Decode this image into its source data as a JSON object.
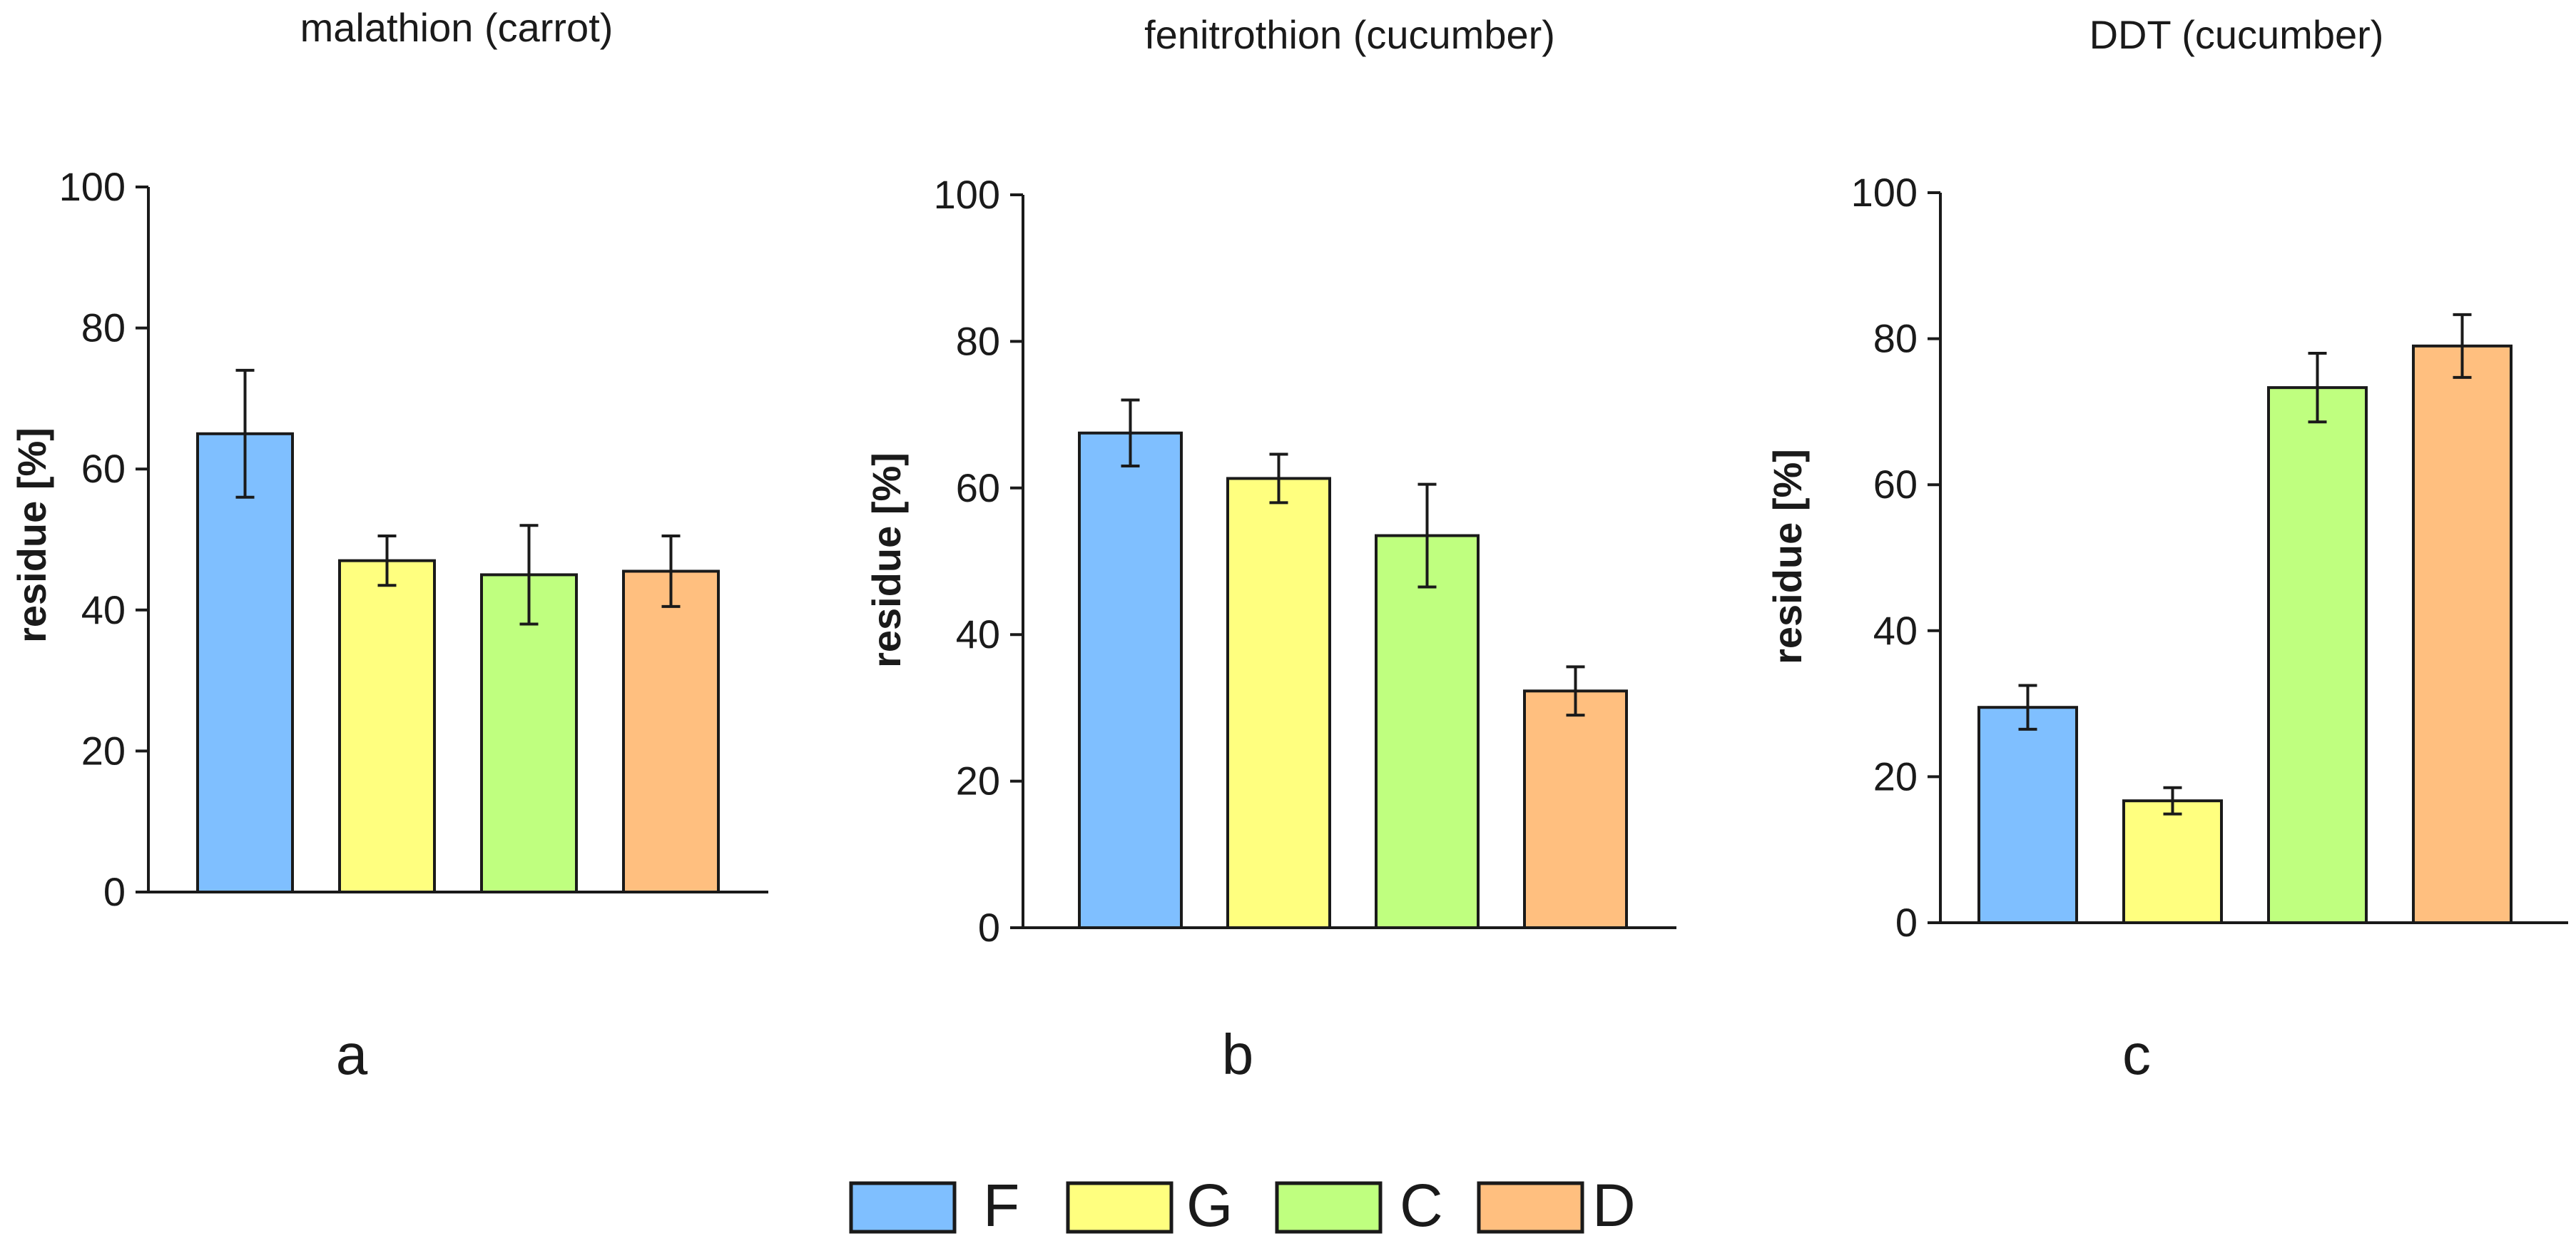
{
  "chart_data": [
    {
      "type": "bar",
      "panel_label": "a",
      "title": "malathion (carrot)",
      "xlabel": "",
      "ylabel": "residue [%]",
      "ylim": [
        0,
        100
      ],
      "yticks": [
        0,
        20,
        40,
        60,
        80,
        100
      ],
      "categories": [
        "F",
        "G",
        "C",
        "D"
      ],
      "values": [
        65,
        47,
        45,
        45.5
      ],
      "errors": [
        9,
        3.5,
        7,
        5
      ]
    },
    {
      "type": "bar",
      "panel_label": "b",
      "title": "fenitrothion (cucumber)",
      "xlabel": "",
      "ylabel": "residue [%]",
      "ylim": [
        0,
        100
      ],
      "yticks": [
        0,
        20,
        40,
        60,
        80,
        100
      ],
      "categories": [
        "F",
        "G",
        "C",
        "D"
      ],
      "values": [
        67.5,
        61.3,
        53.5,
        32.3
      ],
      "errors": [
        4.5,
        3.3,
        7,
        3.3
      ]
    },
    {
      "type": "bar",
      "panel_label": "c",
      "title": "DDT (cucumber)",
      "xlabel": "",
      "ylabel": "residue [%]",
      "ylim": [
        0,
        100
      ],
      "yticks": [
        0,
        20,
        40,
        60,
        80,
        100
      ],
      "categories": [
        "F",
        "G",
        "C",
        "D"
      ],
      "values": [
        29.5,
        16.7,
        73.3,
        79
      ],
      "errors": [
        3,
        1.8,
        4.7,
        4.3
      ]
    }
  ],
  "legend": {
    "placement": "bottom-center",
    "items": [
      {
        "label": "F",
        "color": "#7fbfff"
      },
      {
        "label": "G",
        "color": "#ffff7f"
      },
      {
        "label": "C",
        "color": "#bfff7f"
      },
      {
        "label": "D",
        "color": "#ffbf7f"
      }
    ]
  },
  "colors": {
    "axis": "#1a1a1a",
    "bar_stroke": "#1a1a1a"
  }
}
